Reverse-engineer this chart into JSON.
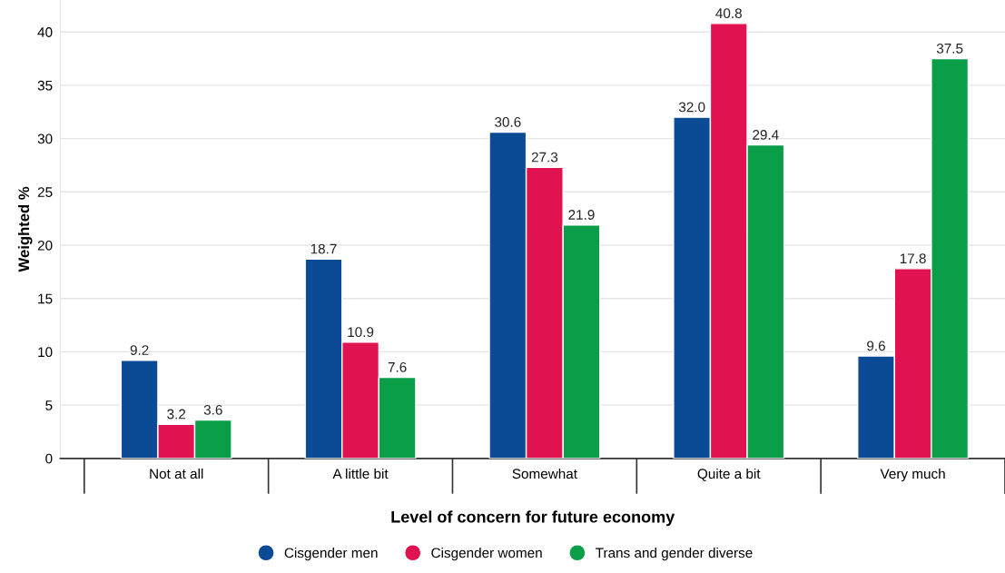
{
  "chart_data": {
    "type": "bar",
    "xlabel": "Level of concern for future economy",
    "ylabel": "Weighted %",
    "categories": [
      "Not at all",
      "A little bit",
      "Somewhat",
      "Quite a bit",
      "Very much"
    ],
    "series": [
      {
        "name": "Cisgender men",
        "color": "#0b4a94",
        "values": [
          9.2,
          18.7,
          30.6,
          32.0,
          9.6
        ],
        "value_labels": [
          "9.2",
          "18.7",
          "30.6",
          "32.0",
          "9.6"
        ]
      },
      {
        "name": "Cisgender women",
        "color": "#e0124f",
        "values": [
          3.2,
          10.9,
          27.3,
          40.8,
          17.8
        ],
        "value_labels": [
          "3.2",
          "10.9",
          "27.3",
          "40.8",
          "17.8"
        ]
      },
      {
        "name": "Trans and gender diverse",
        "color": "#0b9e48",
        "values": [
          3.6,
          7.6,
          21.9,
          29.4,
          37.5
        ],
        "value_labels": [
          "3.6",
          "7.6",
          "21.9",
          "29.4",
          "37.5"
        ]
      }
    ],
    "ylim": [
      0,
      43
    ],
    "yticks": [
      0,
      5,
      10,
      15,
      20,
      25,
      30,
      35,
      40
    ],
    "grid": "y",
    "legend": "bottom"
  }
}
